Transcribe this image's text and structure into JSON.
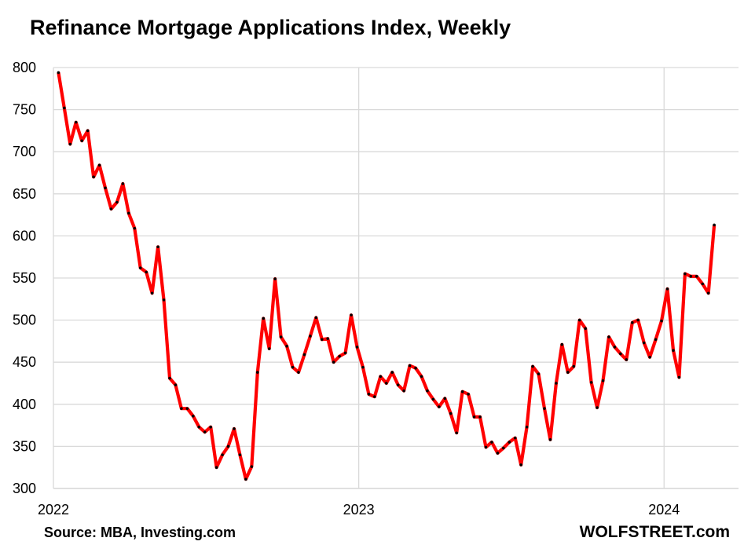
{
  "chart_data": {
    "type": "line",
    "title": "Refinance Mortgage Applications Index, Weekly",
    "xlabel": "",
    "ylabel": "",
    "ylim": [
      300,
      800
    ],
    "yticks": [
      300,
      350,
      400,
      450,
      500,
      550,
      600,
      650,
      700,
      750,
      800
    ],
    "xticks": [
      "2022",
      "2023",
      "2024"
    ],
    "x_start": "2022-01-07",
    "x_step_days": 7,
    "grid": true,
    "line_color": "#ff0000",
    "marker_color": "#000000",
    "series": [
      {
        "values": [
          794,
          752,
          709,
          735,
          713,
          725,
          670,
          684,
          657,
          632,
          640,
          662,
          627,
          609,
          562,
          557,
          532,
          587,
          524,
          431,
          423,
          395,
          395,
          386,
          373,
          367,
          373,
          325,
          340,
          350,
          371,
          340,
          311,
          326,
          438,
          502,
          466,
          549,
          480,
          469,
          444,
          438,
          459,
          481,
          503,
          477,
          478,
          450,
          457,
          461,
          506,
          468,
          444,
          412,
          409,
          433,
          425,
          438,
          423,
          416,
          446,
          443,
          433,
          416,
          406,
          397,
          407,
          389,
          366,
          415,
          412,
          385,
          385,
          349,
          355,
          342,
          348,
          355,
          360,
          328,
          373,
          445,
          436,
          395,
          358,
          425,
          471,
          438,
          445,
          500,
          490,
          426,
          396,
          428,
          480,
          468,
          460,
          453,
          497,
          500,
          473,
          456,
          477,
          499,
          537,
          464,
          432,
          555,
          552,
          552,
          543,
          532,
          613
        ]
      }
    ]
  },
  "footer": {
    "source": "Source: MBA, Investing.com",
    "brand": "WOLFSTREET.com"
  }
}
